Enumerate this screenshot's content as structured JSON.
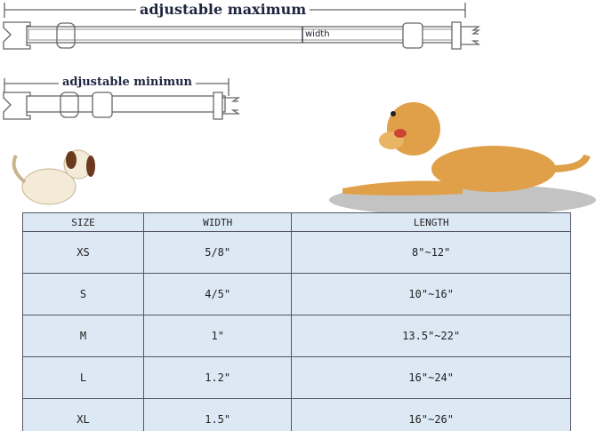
{
  "labels": {
    "max": "adjustable maximum",
    "min": "adjustable minimun",
    "width": "width"
  },
  "table": {
    "headers": [
      "SIZE",
      "WIDTH",
      "LENGTH"
    ],
    "rows": [
      [
        "XS",
        "5/8\"",
        "8\"~12\""
      ],
      [
        "S",
        "4/5\"",
        "10\"~16\""
      ],
      [
        "M",
        "1\"",
        "13.5\"~22\""
      ],
      [
        "L",
        "1.2\"",
        "16\"~24\""
      ],
      [
        "XL",
        "1.5\"",
        "16\"~26\""
      ]
    ]
  },
  "colors": {
    "table_bg": "#dce9f5",
    "title": "#1e2540",
    "dog": "#e0a04a"
  }
}
